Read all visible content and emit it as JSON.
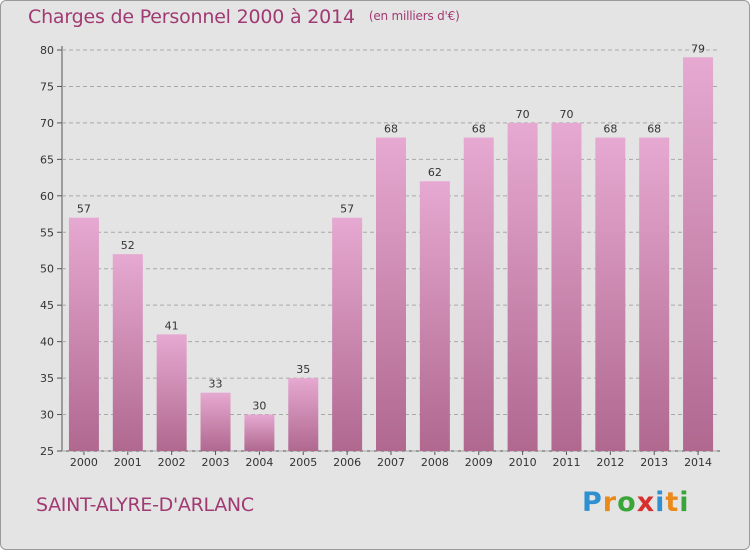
{
  "header": {
    "title": "Charges de Personnel 2000 à 2014",
    "unit": "(en milliers d'€)"
  },
  "footer": {
    "commune": "SAINT-ALYRE-D'ARLANC",
    "logo": {
      "letters": [
        "P",
        "r",
        "o",
        "x",
        "i",
        "t",
        "i"
      ],
      "colors": [
        "#2e8fd1",
        "#e98a1a",
        "#3aa63a",
        "#d8302e",
        "#2e8fd1",
        "#e98a1a",
        "#3aa63a"
      ]
    }
  },
  "colors": {
    "bar_top": "#e6a9d1",
    "bar_bottom": "#b0688f",
    "text_accent": "#a13a73",
    "plot_background": "#e4e4e4"
  },
  "chart_data": {
    "type": "bar",
    "title": "Charges de Personnel 2000 à 2014",
    "subtitle": "(en milliers d'€)",
    "categories": [
      "2000",
      "2001",
      "2002",
      "2003",
      "2004",
      "2005",
      "2006",
      "2007",
      "2008",
      "2009",
      "2010",
      "2011",
      "2012",
      "2013",
      "2014"
    ],
    "values": [
      57,
      52,
      41,
      33,
      30,
      35,
      57,
      68,
      62,
      68,
      70,
      70,
      68,
      68,
      79
    ],
    "ylim": [
      25,
      80
    ],
    "yticks": [
      25,
      30,
      35,
      40,
      45,
      50,
      55,
      60,
      65,
      70,
      75,
      80
    ],
    "grid": "horizontal dashed",
    "data_labels": true
  }
}
